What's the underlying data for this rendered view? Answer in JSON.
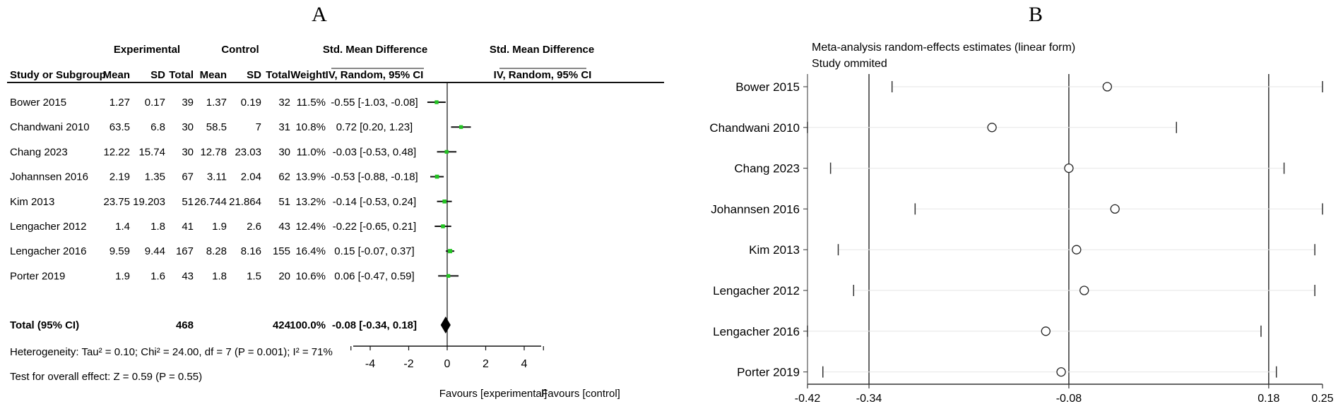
{
  "panel_a_label": "A",
  "panel_b_label": "B",
  "forest": {
    "group_headers": {
      "experimental": "Experimental",
      "control": "Control",
      "smd": "Std. Mean Difference",
      "smd_plot": "Std. Mean Difference"
    },
    "columns": {
      "study": "Study or Subgroup",
      "mean_e": "Mean",
      "sd_e": "SD",
      "total_e": "Total",
      "mean_c": "Mean",
      "sd_c": "SD",
      "total_c": "Total",
      "weight": "Weight",
      "ci": "IV, Random, 95% CI",
      "ci_plot": "IV, Random, 95% CI"
    },
    "rows": [
      {
        "study": "Bower 2015",
        "mean_e": "1.27",
        "sd_e": "0.17",
        "total_e": "39",
        "mean_c": "1.37",
        "sd_c": "0.19",
        "total_c": "32",
        "weight": "11.5%",
        "ci": "-0.55 [-1.03, -0.08]"
      },
      {
        "study": "Chandwani 2010",
        "mean_e": "63.5",
        "sd_e": "6.8",
        "total_e": "30",
        "mean_c": "58.5",
        "sd_c": "7",
        "total_c": "31",
        "weight": "10.8%",
        "ci": "0.72 [0.20, 1.23]"
      },
      {
        "study": "Chang 2023",
        "mean_e": "12.22",
        "sd_e": "15.74",
        "total_e": "30",
        "mean_c": "12.78",
        "sd_c": "23.03",
        "total_c": "30",
        "weight": "11.0%",
        "ci": "-0.03 [-0.53, 0.48]"
      },
      {
        "study": "Johannsen 2016",
        "mean_e": "2.19",
        "sd_e": "1.35",
        "total_e": "67",
        "mean_c": "3.11",
        "sd_c": "2.04",
        "total_c": "62",
        "weight": "13.9%",
        "ci": "-0.53 [-0.88, -0.18]"
      },
      {
        "study": "Kim 2013",
        "mean_e": "23.75",
        "sd_e": "19.203",
        "total_e": "51",
        "mean_c": "26.744",
        "sd_c": "21.864",
        "total_c": "51",
        "weight": "13.2%",
        "ci": "-0.14 [-0.53, 0.24]"
      },
      {
        "study": "Lengacher 2012",
        "mean_e": "1.4",
        "sd_e": "1.8",
        "total_e": "41",
        "mean_c": "1.9",
        "sd_c": "2.6",
        "total_c": "43",
        "weight": "12.4%",
        "ci": "-0.22 [-0.65, 0.21]"
      },
      {
        "study": "Lengacher 2016",
        "mean_e": "9.59",
        "sd_e": "9.44",
        "total_e": "167",
        "mean_c": "8.28",
        "sd_c": "8.16",
        "total_c": "155",
        "weight": "16.4%",
        "ci": "0.15 [-0.07, 0.37]"
      },
      {
        "study": "Porter 2019",
        "mean_e": "1.9",
        "sd_e": "1.6",
        "total_e": "43",
        "mean_c": "1.8",
        "sd_c": "1.5",
        "total_c": "20",
        "weight": "10.6%",
        "ci": "0.06 [-0.47, 0.59]"
      }
    ],
    "total": {
      "label": "Total (95% CI)",
      "total_e": "468",
      "total_c": "424",
      "weight": "100.0%",
      "ci": "-0.08 [-0.34, 0.18]"
    },
    "heterogeneity": "Heterogeneity: Tau² = 0.10; Chi² = 24.00, df = 7 (P = 0.001); I² = 71%",
    "overall_effect": "Test for overall effect: Z = 0.59 (P = 0.55)",
    "favours_left": "Favours [experimental]",
    "favours_right": "Favours [control]"
  },
  "sensitivity": {
    "title_line1": "Meta-analysis random-effects estimates (linear form)",
    "title_line2": "Study ommited"
  },
  "chart_data": [
    {
      "type": "scatter",
      "title": "Std. Mean Difference",
      "subtitle": "IV, Random, 95% CI",
      "xlim": [
        -5,
        5
      ],
      "xticks": [
        "-4",
        "-2",
        "0",
        "2",
        "4"
      ],
      "xtick_values": [
        -4,
        -2,
        0,
        2,
        4
      ],
      "studies": [
        "Bower 2015",
        "Chandwani 2010",
        "Chang 2023",
        "Johannsen 2016",
        "Kim 2013",
        "Lengacher 2012",
        "Lengacher 2016",
        "Porter 2019"
      ],
      "estimate": [
        -0.55,
        0.72,
        -0.03,
        -0.53,
        -0.14,
        -0.22,
        0.15,
        0.06
      ],
      "ci_low": [
        -1.03,
        0.2,
        -0.53,
        -0.88,
        -0.53,
        -0.65,
        -0.07,
        -0.47
      ],
      "ci_high": [
        -0.08,
        1.23,
        0.48,
        -0.18,
        0.24,
        0.21,
        0.37,
        0.59
      ],
      "weight_pct": [
        11.5,
        10.8,
        11.0,
        13.9,
        13.2,
        12.4,
        16.4,
        10.6
      ],
      "pooled": {
        "estimate": -0.08,
        "ci_low": -0.34,
        "ci_high": 0.18
      },
      "marker_color": "#22c322"
    },
    {
      "type": "scatter",
      "title": "Meta-analysis random-effects estimates (linear form)",
      "subtitle": "Study ommited",
      "xlim": [
        -0.42,
        0.25
      ],
      "xticks": [
        "-0.42",
        "-0.34",
        "-0.08",
        "0.18",
        "0.25"
      ],
      "xtick_values": [
        -0.42,
        -0.34,
        -0.08,
        0.18,
        0.25
      ],
      "reference_lines": [
        -0.34,
        -0.08,
        0.18
      ],
      "studies": [
        "Bower 2015",
        "Chandwani 2010",
        "Chang 2023",
        "Johannsen 2016",
        "Kim 2013",
        "Lengacher 2012",
        "Lengacher 2016",
        "Porter 2019"
      ],
      "estimate": [
        -0.03,
        -0.18,
        -0.08,
        -0.02,
        -0.07,
        -0.06,
        -0.11,
        -0.09
      ],
      "ci_low": [
        -0.31,
        -0.42,
        -0.39,
        -0.28,
        -0.38,
        -0.36,
        -0.42,
        -0.4
      ],
      "ci_high": [
        0.25,
        0.06,
        0.2,
        0.25,
        0.24,
        0.24,
        0.17,
        0.19
      ]
    }
  ]
}
